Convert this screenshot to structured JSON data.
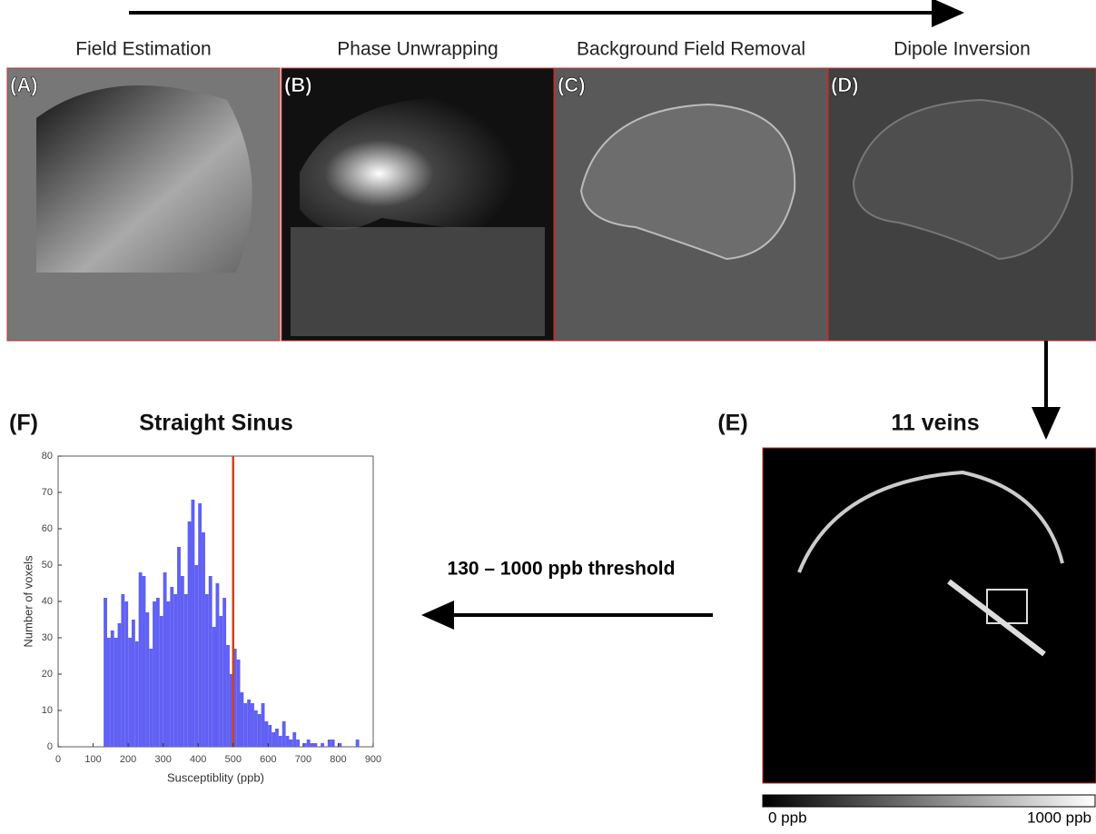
{
  "pipeline": [
    {
      "label": "(A)",
      "title": "Field Estimation"
    },
    {
      "label": "(B)",
      "title": "Phase Unwrapping"
    },
    {
      "label": "(C)",
      "title": "Background Field Removal"
    },
    {
      "label": "(D)",
      "title": "Dipole Inversion"
    }
  ],
  "panel_e": {
    "label": "(E)",
    "title": "11 veins",
    "colorbar_min": "0 ppb",
    "colorbar_max": "1000 ppb"
  },
  "threshold_text": "130 – 1000 ppb threshold",
  "chart_data": {
    "type": "histogram",
    "panel_label": "(F)",
    "title": "Straight Sinus",
    "x_label": "Susceptiblity (ppb)",
    "y_label": "Number of voxels",
    "bins": [
      130,
      140,
      150,
      160,
      170,
      180,
      190,
      200,
      210,
      220,
      230,
      240,
      250,
      260,
      270,
      280,
      290,
      300,
      310,
      320,
      330,
      340,
      350,
      360,
      370,
      380,
      390,
      400,
      410,
      420,
      430,
      440,
      450,
      460,
      470,
      480,
      490,
      500,
      510,
      520,
      530,
      540,
      550,
      560,
      570,
      580,
      590,
      600,
      610,
      620,
      630,
      640,
      650,
      660,
      670,
      680,
      690,
      700,
      710,
      720,
      730,
      740,
      750,
      760,
      770,
      780,
      790,
      800,
      810,
      820,
      830,
      840,
      850,
      860
    ],
    "counts": [
      41,
      30,
      32,
      30,
      34,
      42,
      40,
      30,
      35,
      29,
      48,
      47,
      37,
      27,
      40,
      41,
      36,
      48,
      40,
      44,
      42,
      55,
      47,
      42,
      62,
      68,
      50,
      67,
      59,
      42,
      47,
      33,
      45,
      36,
      41,
      28,
      20,
      27,
      24,
      15,
      12,
      13,
      12,
      10,
      9,
      12,
      7,
      6,
      4,
      5,
      3,
      7,
      3,
      2,
      4,
      2,
      0,
      1,
      2,
      1,
      1,
      0,
      1,
      0,
      2,
      2,
      0,
      1,
      0,
      0,
      0,
      0,
      2
    ],
    "color": "#6060f4",
    "threshold_line": 500,
    "threshold_color": "#d0421f",
    "xlim": [
      0,
      900
    ],
    "xticks": [
      0,
      100,
      200,
      300,
      400,
      500,
      600,
      700,
      800,
      900
    ],
    "ylim": [
      0,
      80
    ],
    "yticks": [
      0,
      10,
      20,
      30,
      40,
      50,
      60,
      70,
      80
    ]
  }
}
